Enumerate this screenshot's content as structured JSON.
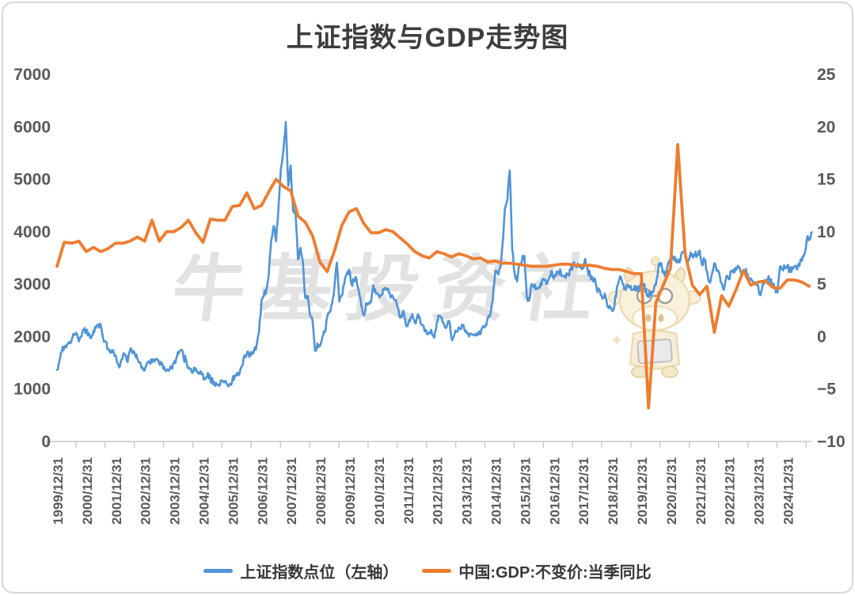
{
  "title": "上证指数与GDP走势图",
  "watermark": {
    "text": "牛基投资社",
    "mascot": "bull-mascot"
  },
  "legend": [
    {
      "label": "上证指数点位（左轴）",
      "color": "#5094D5"
    },
    {
      "label": "中国:GDP:不变价:当季同比",
      "color": "#ED7D31"
    }
  ],
  "chart_data": {
    "type": "line",
    "title": "上证指数与GDP走势图",
    "grid": false,
    "legend_position": "bottom",
    "left_axis": {
      "min": 0,
      "max": 7000,
      "step": 1000,
      "tick_values": [
        7000,
        6000,
        5000,
        4000,
        3000,
        2000,
        1000,
        0
      ],
      "tick_labels": [
        "7000",
        "6000",
        "5000",
        "4000",
        "3000",
        "2000",
        "1000",
        "0"
      ]
    },
    "right_axis": {
      "min": -10,
      "max": 25,
      "step": 5,
      "tick_values": [
        25,
        20,
        15,
        10,
        5,
        0,
        -5,
        -10
      ],
      "tick_labels": [
        "25",
        "20",
        "15",
        "10",
        "5",
        "0",
        "−5",
        "−10"
      ]
    },
    "x_tick_labels": [
      "1999/12/31",
      "2000/12/31",
      "2001/12/31",
      "2002/12/31",
      "2003/12/31",
      "2004/12/31",
      "2005/12/31",
      "2006/12/31",
      "2007/12/31",
      "2008/12/31",
      "2009/12/31",
      "2010/12/31",
      "2011/12/31",
      "2012/12/31",
      "2013/12/31",
      "2014/12/31",
      "2015/12/31",
      "2016/12/31",
      "2017/12/31",
      "2018/12/31",
      "2019/12/31",
      "2020/12/31",
      "2021/12/31",
      "2022/12/31",
      "2023/12/31",
      "2024/12/31"
    ],
    "series": [
      {
        "name": "上证指数点位（左轴）",
        "axis": "left",
        "color": "#5094D5",
        "start": "1999/12/31",
        "interval": "monthly",
        "dt_years": 0.0833333,
        "values": [
          1367,
          1535,
          1714,
          1800,
          1836,
          1894,
          1928,
          2023,
          2074,
          1910,
          1995,
          2125,
          2073,
          2066,
          1971,
          2112,
          2167,
          2225,
          2218,
          1955,
          1908,
          1765,
          1691,
          1742,
          1646,
          1492,
          1465,
          1603,
          1657,
          1515,
          1733,
          1684,
          1673,
          1582,
          1510,
          1419,
          1358,
          1499,
          1512,
          1510,
          1521,
          1576,
          1486,
          1476,
          1422,
          1367,
          1348,
          1397,
          1497,
          1590,
          1675,
          1742,
          1595,
          1556,
          1399,
          1387,
          1342,
          1396,
          1320,
          1340,
          1266,
          1191,
          1306,
          1181,
          1159,
          1060,
          1081,
          1083,
          1162,
          1155,
          1092,
          1099,
          1161,
          1258,
          1299,
          1298,
          1440,
          1641,
          1672,
          1612,
          1658,
          1752,
          1837,
          2099,
          2675,
          2786,
          2881,
          3183,
          3841,
          4109,
          3820,
          4471,
          5218,
          5552,
          6092,
          4871,
          5262,
          4383,
          4348,
          3473,
          3693,
          3433,
          2736,
          2776,
          2397,
          2294,
          1729,
          1871,
          1821,
          1991,
          2082,
          2373,
          2478,
          2633,
          2959,
          3412,
          2668,
          2779,
          2995,
          3195,
          3277,
          2989,
          3052,
          3109,
          2871,
          2592,
          2398,
          2638,
          2639,
          2656,
          2979,
          2820,
          2808,
          2790,
          2905,
          2928,
          2911,
          2743,
          2762,
          2701,
          2567,
          2359,
          2468,
          2333,
          2199,
          2293,
          2428,
          2262,
          2396,
          2372,
          2225,
          2103,
          2047,
          2086,
          2068,
          1980,
          2269,
          2385,
          2365,
          2237,
          2177,
          2301,
          1979,
          1994,
          2098,
          2175,
          2141,
          2220,
          2116,
          2033,
          2056,
          2033,
          2026,
          2039,
          2048,
          2201,
          2217,
          2364,
          2420,
          2683,
          3235,
          3210,
          3310,
          3748,
          4442,
          4612,
          5166,
          3664,
          3206,
          3053,
          3383,
          3445,
          3539,
          2738,
          2688,
          3004,
          2938,
          2917,
          2930,
          2979,
          3085,
          3005,
          3100,
          3250,
          3104,
          3159,
          3242,
          3223,
          3155,
          3117,
          3192,
          3273,
          3361,
          3349,
          3393,
          3317,
          3307,
          3481,
          3259,
          3169,
          3082,
          3095,
          2847,
          2876,
          2725,
          2821,
          2603,
          2588,
          2494,
          2585,
          2941,
          3091,
          3078,
          2899,
          2979,
          2933,
          2886,
          2905,
          2929,
          2872,
          3050,
          2977,
          2880,
          2750,
          2860,
          2852,
          2985,
          3310,
          3396,
          3218,
          3225,
          3392,
          3473,
          3483,
          3509,
          3442,
          3447,
          3615,
          3591,
          3397,
          3544,
          3568,
          3547,
          3564,
          3640,
          3361,
          3462,
          3252,
          3047,
          3186,
          3399,
          3253,
          3202,
          3024,
          2893,
          3151,
          3089,
          3256,
          3280,
          3273,
          3323,
          3205,
          3202,
          3291,
          3120,
          3110,
          3019,
          3030,
          2975,
          2789,
          3015,
          3041,
          3105,
          3087,
          2967,
          2939,
          2842,
          3336,
          3280,
          3326,
          3352,
          3251,
          3321,
          3336,
          3279,
          3347,
          3444,
          3573,
          3858,
          3883,
          3990
        ]
      },
      {
        "name": "中国:GDP:不变价:当季同比",
        "axis": "right",
        "color": "#ED7D31",
        "start": "1999Q4",
        "interval": "quarterly",
        "dt_years": 0.25,
        "values": [
          6.7,
          9.0,
          8.9,
          9.1,
          8.1,
          8.5,
          8.1,
          8.4,
          8.9,
          8.9,
          9.1,
          9.5,
          9.1,
          11.1,
          9.1,
          10.0,
          10.0,
          10.4,
          11.1,
          9.9,
          9.0,
          11.2,
          11.1,
          11.1,
          12.4,
          12.5,
          13.7,
          12.2,
          12.5,
          13.8,
          15.0,
          14.3,
          13.9,
          11.5,
          10.9,
          9.6,
          7.1,
          6.2,
          8.2,
          10.6,
          11.9,
          12.2,
          10.8,
          9.9,
          9.9,
          10.2,
          10.0,
          9.4,
          8.8,
          8.1,
          7.7,
          7.5,
          8.1,
          7.9,
          7.6,
          7.9,
          7.7,
          7.4,
          7.5,
          7.1,
          7.2,
          7.0,
          7.0,
          6.9,
          6.8,
          6.7,
          6.7,
          6.7,
          6.8,
          6.9,
          6.9,
          6.8,
          6.8,
          6.8,
          6.7,
          6.5,
          6.4,
          6.4,
          6.2,
          6.0,
          6.0,
          -6.8,
          3.2,
          4.9,
          6.5,
          18.3,
          7.9,
          4.9,
          4.0,
          4.8,
          0.4,
          3.9,
          2.9,
          4.5,
          6.3,
          4.9,
          5.2,
          5.3,
          4.7,
          4.6,
          5.4,
          5.4,
          5.2,
          4.8
        ]
      }
    ]
  }
}
